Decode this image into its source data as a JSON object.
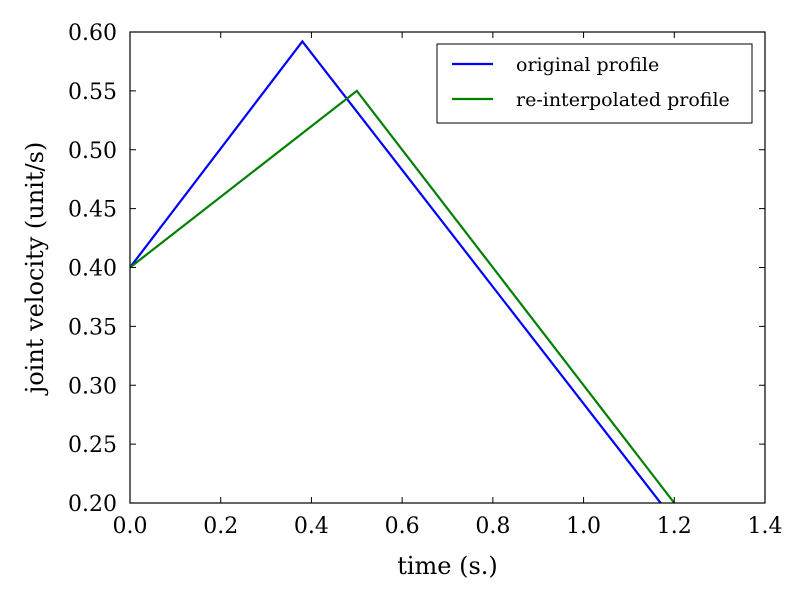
{
  "chart_data": {
    "type": "line",
    "xlabel": "time (s.)",
    "ylabel": "joint velocity (unit/s)",
    "xlim": [
      0.0,
      1.4
    ],
    "ylim": [
      0.2,
      0.6
    ],
    "xticks": [
      "0.0",
      "0.2",
      "0.4",
      "0.6",
      "0.8",
      "1.0",
      "1.2",
      "1.4"
    ],
    "yticks": [
      "0.20",
      "0.25",
      "0.30",
      "0.35",
      "0.40",
      "0.45",
      "0.50",
      "0.55",
      "0.60"
    ],
    "grid": false,
    "legend_position": "top-right",
    "series": [
      {
        "name": "original profile",
        "color": "#0000ff",
        "x": [
          0.0,
          0.38,
          1.17
        ],
        "y": [
          0.4,
          0.592,
          0.2
        ]
      },
      {
        "name": "re-interpolated profile",
        "color": "#008000",
        "x": [
          0.0,
          0.5,
          1.2
        ],
        "y": [
          0.4,
          0.55,
          0.2
        ]
      }
    ]
  }
}
